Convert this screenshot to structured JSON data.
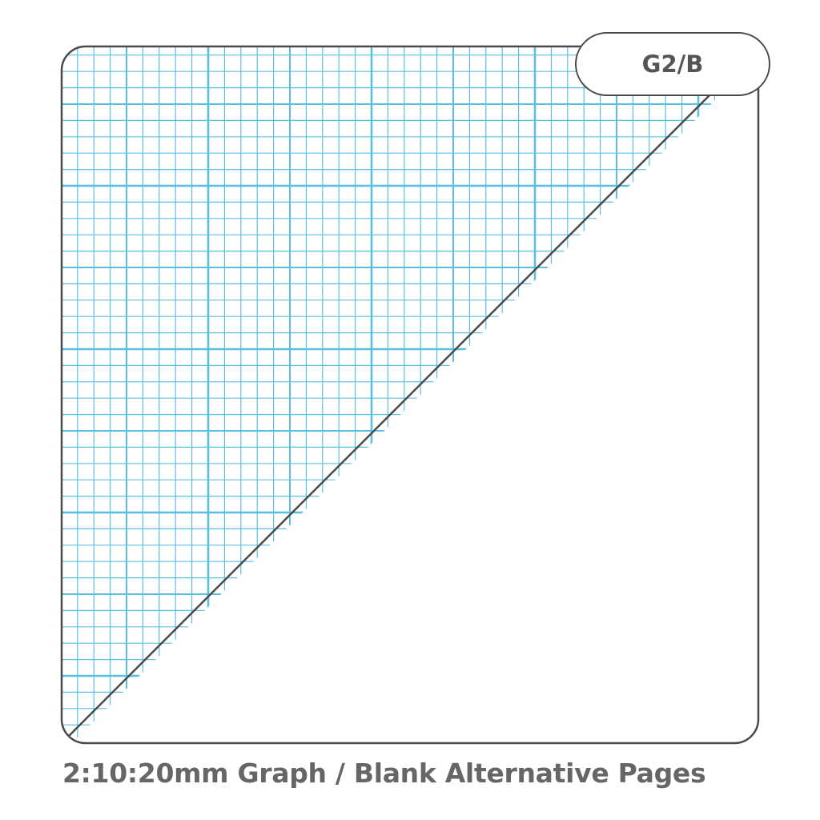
{
  "badge": {
    "code": "G2/B"
  },
  "caption": "2:10:20mm Graph / Blank Alternative Pages",
  "colors": {
    "grid": "#5bc0e0",
    "border": "#4a4a4a",
    "text": "#666666"
  }
}
